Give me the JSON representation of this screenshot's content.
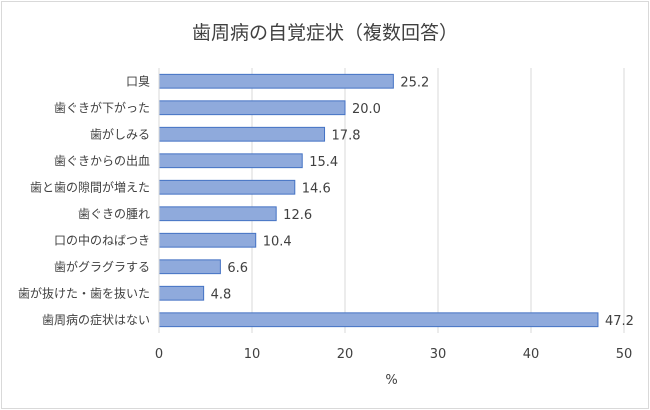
{
  "chart_data": {
    "type": "bar",
    "orientation": "horizontal",
    "title": "歯周病の自覚症状（複数回答）",
    "xlabel": "%",
    "ylabel": "",
    "xlim": [
      0,
      50
    ],
    "xticks": [
      0,
      10,
      20,
      30,
      40,
      50
    ],
    "grid": true,
    "categories": [
      "口臭",
      "歯ぐきが下がった",
      "歯がしみる",
      "歯ぐきからの出血",
      "歯と歯の隙間が増えた",
      "歯ぐきの腫れ",
      "口の中のねばつき",
      "歯がグラグラする",
      "歯が抜けた・歯を抜いた",
      "歯周病の症状はない"
    ],
    "values": [
      25.2,
      20.0,
      17.8,
      15.4,
      14.6,
      12.6,
      10.4,
      6.6,
      4.8,
      47.2
    ],
    "value_labels": [
      "25.2",
      "20.0",
      "17.8",
      "15.4",
      "14.6",
      "12.6",
      "10.4",
      "6.6",
      "4.8",
      "47.2"
    ],
    "bar_color": "#8faadc",
    "bar_border_color": "#4472c4",
    "grid_color": "#d9d9d9"
  }
}
